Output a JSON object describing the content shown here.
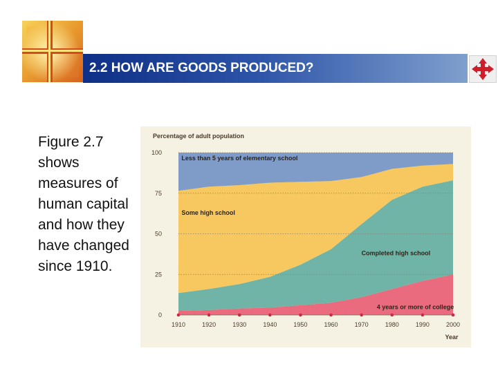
{
  "slide": {
    "title": "2.2 HOW ARE GOODS PRODUCED?",
    "body_text": "Figure 2.7 shows measures of human capital and how they have changed since 1910."
  },
  "icons": {
    "logo": "cross-logo-icon",
    "nav": "compass-arrows-icon"
  },
  "colors": {
    "title_bar": "#1f3f96",
    "panel_bg": "#f6f2e3",
    "less_than_5_years": "#7f9cc8",
    "some_high_school": "#f6c85f",
    "completed_high_school": "#6fb4a6",
    "college": "#ea6a7e",
    "marker": "#d81e3c"
  },
  "chart_data": {
    "type": "area",
    "stacked": true,
    "title": "",
    "ylabel": "Percentage of adult population",
    "xlabel": "Year",
    "x": [
      1910,
      1920,
      1930,
      1940,
      1950,
      1960,
      1970,
      1980,
      1990,
      2000
    ],
    "xlim": [
      1910,
      2000
    ],
    "ylim": [
      0,
      100
    ],
    "yticks": [
      0,
      25,
      50,
      75,
      100
    ],
    "grid": "horizontal-dotted",
    "series": [
      {
        "name": "4 years or more of college",
        "values": [
          2.5,
          3,
          4,
          4.5,
          6,
          7.5,
          11,
          16,
          21,
          25
        ]
      },
      {
        "name": "Completed high school",
        "values": [
          11,
          13,
          15,
          19,
          25,
          33,
          45,
          55,
          58,
          58
        ]
      },
      {
        "name": "Some high school",
        "values": [
          63,
          63,
          61,
          58,
          51,
          42,
          29,
          19,
          13,
          10
        ]
      },
      {
        "name": "Less than 5 years of elementary school",
        "values": [
          23.5,
          21,
          20,
          18.5,
          18,
          17.5,
          15,
          10,
          8,
          7
        ]
      }
    ]
  }
}
